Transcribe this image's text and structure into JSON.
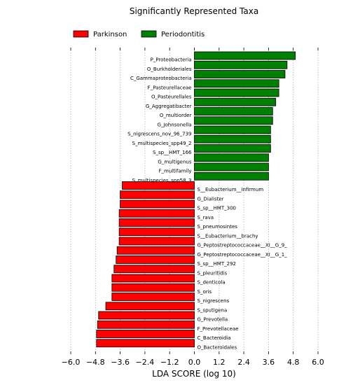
{
  "chart_data": {
    "type": "bar",
    "orientation": "horizontal",
    "title": "Significantly Represented Taxa",
    "xlabel": "LDA SCORE (log 10)",
    "ylabel": "",
    "xlim": [
      -6.0,
      6.0
    ],
    "xticks": [
      "−6.0",
      "−4.8",
      "−3.6",
      "−2.4",
      "−1.2",
      "0.0",
      "1.2",
      "2.4",
      "3.6",
      "4.8",
      "6.0"
    ],
    "xtick_values": [
      -6.0,
      -4.8,
      -3.6,
      -2.4,
      -1.2,
      0.0,
      1.2,
      2.4,
      3.6,
      4.8,
      6.0
    ],
    "grid": "vertical",
    "legend_position": "top-left",
    "series": [
      {
        "name": "Parkinson",
        "color": "#ff0000"
      },
      {
        "name": "Periodontitis",
        "color": "#008000"
      }
    ],
    "bars": [
      {
        "label": "P_Proteobacteria",
        "value": 4.9,
        "series": "Periodontitis"
      },
      {
        "label": "O_Burkholderiales",
        "value": 4.5,
        "series": "Periodontitis"
      },
      {
        "label": "C_Gammaproteobacteria",
        "value": 4.4,
        "series": "Periodontitis"
      },
      {
        "label": "F_Pasteurellaceae",
        "value": 4.1,
        "series": "Periodontitis"
      },
      {
        "label": "O_Pasteurellales",
        "value": 4.1,
        "series": "Periodontitis"
      },
      {
        "label": "G_Aggregatibacter",
        "value": 3.95,
        "series": "Periodontitis"
      },
      {
        "label": "O_multiorder",
        "value": 3.8,
        "series": "Periodontitis"
      },
      {
        "label": "G_Johnsonella",
        "value": 3.8,
        "series": "Periodontitis"
      },
      {
        "label": "S_nigrescens_nov_96_739",
        "value": 3.7,
        "series": "Periodontitis"
      },
      {
        "label": "S_multispecies_spp49_2",
        "value": 3.7,
        "series": "Periodontitis"
      },
      {
        "label": "S_sp__HMT_166",
        "value": 3.7,
        "series": "Periodontitis"
      },
      {
        "label": "G_multigenus",
        "value": 3.6,
        "series": "Periodontitis"
      },
      {
        "label": "F_multifamily",
        "value": 3.6,
        "series": "Periodontitis"
      },
      {
        "label": "S_multispecies_spp58_3",
        "value": 3.6,
        "series": "Periodontitis"
      },
      {
        "label": "S__Eubacterium__infirmum",
        "value": -3.5,
        "series": "Parkinson"
      },
      {
        "label": "G_Dialister",
        "value": -3.6,
        "series": "Parkinson"
      },
      {
        "label": "S_sp__HMT_300",
        "value": -3.6,
        "series": "Parkinson"
      },
      {
        "label": "S_rava",
        "value": -3.65,
        "series": "Parkinson"
      },
      {
        "label": "S_pneumosintes",
        "value": -3.65,
        "series": "Parkinson"
      },
      {
        "label": "S__Eubacterium__brachy",
        "value": -3.65,
        "series": "Parkinson"
      },
      {
        "label": "G_Peptostreptococcaceae__XI__G_9_",
        "value": -3.65,
        "series": "Parkinson"
      },
      {
        "label": "G_Peptostreptococcaceae__XI__G_1_",
        "value": -3.75,
        "series": "Parkinson"
      },
      {
        "label": "S_sp__HMT_292",
        "value": -3.8,
        "series": "Parkinson"
      },
      {
        "label": "S_pleuritidis",
        "value": -3.9,
        "series": "Parkinson"
      },
      {
        "label": "S_denticola",
        "value": -4.0,
        "series": "Parkinson"
      },
      {
        "label": "S_oris",
        "value": -4.0,
        "series": "Parkinson"
      },
      {
        "label": "S_nigrescens",
        "value": -4.0,
        "series": "Parkinson"
      },
      {
        "label": "S_sputigena",
        "value": -4.3,
        "series": "Parkinson"
      },
      {
        "label": "G_Prevotella",
        "value": -4.65,
        "series": "Parkinson"
      },
      {
        "label": "F_Prevotellaceae",
        "value": -4.7,
        "series": "Parkinson"
      },
      {
        "label": "C_Bacteroidia",
        "value": -4.75,
        "series": "Parkinson"
      },
      {
        "label": "O_Bacteroidales",
        "value": -4.75,
        "series": "Parkinson"
      }
    ]
  }
}
